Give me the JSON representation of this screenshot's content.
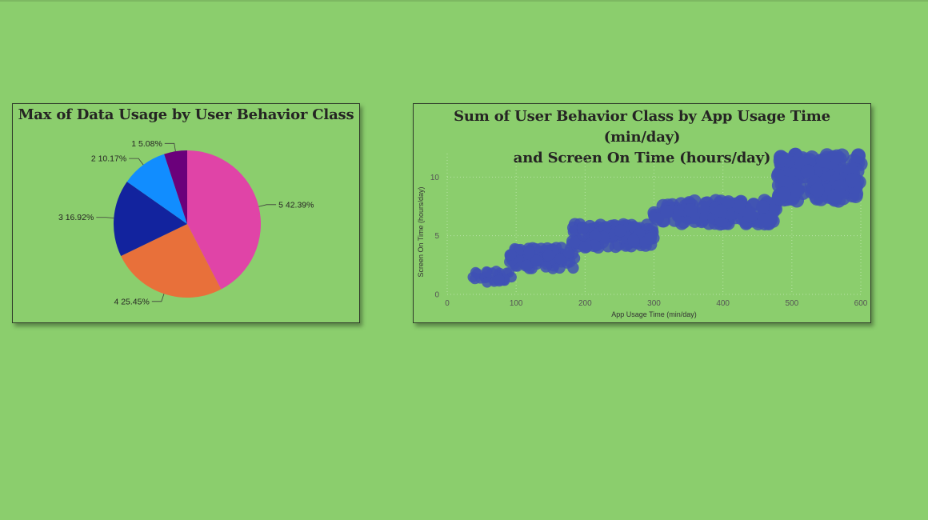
{
  "chart_data": [
    {
      "type": "pie",
      "title": "Max of Data Usage by User Behavior Class",
      "categories": [
        "5",
        "4",
        "3",
        "2",
        "1"
      ],
      "values": [
        42.39,
        25.45,
        16.92,
        10.17,
        5.08
      ],
      "labels": [
        "5 42.39%",
        "4 25.45%",
        "3 16.92%",
        "2 10.17%",
        "1 5.08%"
      ],
      "colors": [
        "#e044a7",
        "#e8703a",
        "#12239e",
        "#118dff",
        "#6b007b"
      ]
    },
    {
      "type": "scatter",
      "title_line1": "Sum of User Behavior Class by App Usage Time (min/day)",
      "title_line2": "and Screen On Time (hours/day)",
      "xlabel": "App Usage Time (min/day)",
      "ylabel": "Screen On Time (hours/day)",
      "xlim": [
        0,
        600
      ],
      "ylim": [
        0,
        12
      ],
      "xticks": [
        "0",
        "100",
        "200",
        "300",
        "400",
        "500",
        "600"
      ],
      "yticks": [
        "0",
        "5",
        "10"
      ],
      "grid": true,
      "color": "#4051b5",
      "clusters": [
        {
          "class": 1,
          "x_range": [
            30,
            95
          ],
          "y_range": [
            1.0,
            2.0
          ],
          "points": 30
        },
        {
          "class": 2,
          "x_range": [
            90,
            185
          ],
          "y_range": [
            2.2,
            4.0
          ],
          "points": 90
        },
        {
          "class": 3,
          "x_range": [
            180,
            300
          ],
          "y_range": [
            4.0,
            6.0
          ],
          "points": 110
        },
        {
          "class": 4,
          "x_range": [
            300,
            480
          ],
          "y_range": [
            6.0,
            8.0
          ],
          "points": 140
        },
        {
          "class": 5,
          "x_range": [
            480,
            600
          ],
          "y_range": [
            8.0,
            12.0
          ],
          "points": 170
        }
      ]
    }
  ]
}
